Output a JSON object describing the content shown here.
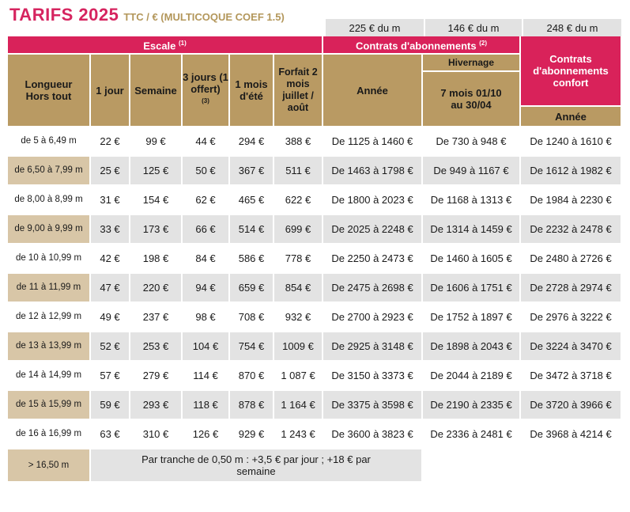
{
  "title": {
    "main": "TARIFS 2025",
    "sub": "TTC / € (MULTICOQUE COEF 1.5)"
  },
  "price_headers": [
    "225 € du m",
    "146 € du m",
    "248 € du m"
  ],
  "groups": {
    "escale": "Escale",
    "escale_note": "(1)",
    "contrats": "Contrats d'abonnements",
    "contrats_note": "(2)",
    "confort": "Contrats d'abonnements confort"
  },
  "columns": {
    "length": "Longueur Hors tout",
    "day": "1 jour",
    "week": "Semaine",
    "three_days": "3 jours (1 offert)",
    "three_days_note": "(3)",
    "summer_month": "1 mois d'été",
    "forfait": "Forfait 2 mois juillet / août",
    "annee": "Année",
    "hivernage": "Hivernage",
    "hivernage_period": "7 mois 01/10 au 30/04",
    "confort_annee": "Année"
  },
  "rows": [
    {
      "length": "de 5 à 6,49 m",
      "day": "22 €",
      "week": "99 €",
      "three": "44 €",
      "month": "294 €",
      "forfait": "388 €",
      "annee": "De 1125 à 1460 €",
      "hiver": "De 730 à 948 €",
      "confort": "De 1240 à 1610 €"
    },
    {
      "length": "de 6,50 à 7,99 m",
      "day": "25 €",
      "week": "125 €",
      "three": "50 €",
      "month": "367 €",
      "forfait": "511 €",
      "annee": "De 1463 à 1798 €",
      "hiver": "De 949 à 1167 €",
      "confort": "De 1612 à 1982 €"
    },
    {
      "length": "de 8,00 à 8,99 m",
      "day": "31 €",
      "week": "154 €",
      "three": "62 €",
      "month": "465 €",
      "forfait": "622 €",
      "annee": "De 1800 à 2023 €",
      "hiver": "De 1168 à 1313 €",
      "confort": "De 1984 à 2230 €"
    },
    {
      "length": "de 9,00 à 9,99 m",
      "day": "33 €",
      "week": "173 €",
      "three": "66 €",
      "month": "514 €",
      "forfait": "699 €",
      "annee": "De 2025 à 2248 €",
      "hiver": "De 1314 à 1459 €",
      "confort": "De 2232 à 2478 €"
    },
    {
      "length": "de 10 à 10,99 m",
      "day": "42 €",
      "week": "198 €",
      "three": "84 €",
      "month": "586 €",
      "forfait": "778 €",
      "annee": "De 2250 à 2473 €",
      "hiver": "De 1460 à 1605 €",
      "confort": "De 2480 à 2726 €"
    },
    {
      "length": "de 11 à 11,99 m",
      "day": "47 €",
      "week": "220 €",
      "three": "94 €",
      "month": "659 €",
      "forfait": "854 €",
      "annee": "De 2475 à 2698 €",
      "hiver": "De 1606 à 1751 €",
      "confort": "De 2728 à 2974 €"
    },
    {
      "length": "de 12 à 12,99 m",
      "day": "49 €",
      "week": "237 €",
      "three": "98 €",
      "month": "708 €",
      "forfait": "932 €",
      "annee": "De 2700 à 2923 €",
      "hiver": "De 1752 à 1897 €",
      "confort": "De 2976 à 3222 €"
    },
    {
      "length": "de 13 à 13,99 m",
      "day": "52 €",
      "week": "253 €",
      "three": "104 €",
      "month": "754 €",
      "forfait": "1009 €",
      "annee": "De 2925 à 3148 €",
      "hiver": "De 1898 à 2043 €",
      "confort": "De 3224 à 3470 €"
    },
    {
      "length": "de 14 à 14,99 m",
      "day": "57 €",
      "week": "279 €",
      "three": "114 €",
      "month": "870 €",
      "forfait": "1 087 €",
      "annee": "De 3150 à 3373 €",
      "hiver": "De 2044 à 2189 €",
      "confort": "De 3472 à 3718 €"
    },
    {
      "length": "de 15 à 15,99 m",
      "day": "59 €",
      "week": "293 €",
      "three": "118 €",
      "month": "878 €",
      "forfait": "1 164 €",
      "annee": "De 3375 à 3598 €",
      "hiver": "De 2190 à 2335 €",
      "confort": "De 3720 à 3966 €"
    },
    {
      "length": "de 16 à 16,99 m",
      "day": "63 €",
      "week": "310 €",
      "three": "126 €",
      "month": "929 €",
      "forfait": "1 243 €",
      "annee": "De 3600 à 3823 €",
      "hiver": "De 2336 à 2481 €",
      "confort": "De 3968 à 4214 €"
    }
  ],
  "last_row": {
    "length": "> 16,50 m",
    "note": "Par tranche de 0,50 m : +3,5 € par jour ; +18 € par semaine"
  },
  "colors": {
    "pink": "#d9225a",
    "gold": "#b99a63",
    "grey": "#e3e3e3",
    "tan": "#d8c6a7"
  }
}
